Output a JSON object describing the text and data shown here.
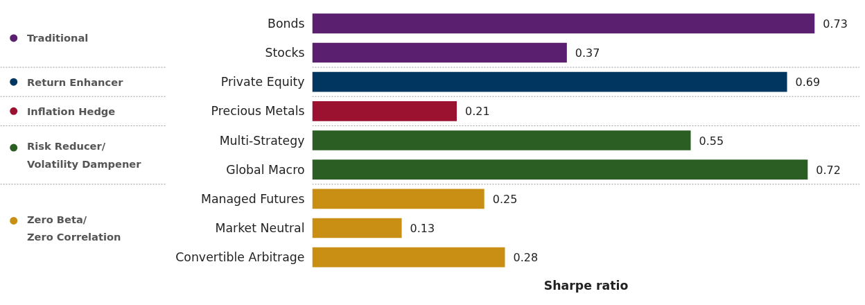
{
  "chart_data": {
    "type": "bar",
    "orientation": "horizontal",
    "xlabel": "Sharpe ratio",
    "data_labels": true,
    "legend": "left",
    "categories": [
      "Bonds",
      "Stocks",
      "Private Equity",
      "Precious Metals",
      "Multi-Strategy",
      "Global Macro",
      "Managed Futures",
      "Market Neutral",
      "Convertible Arbitrage"
    ],
    "series": [
      {
        "name": "Traditional",
        "color": "#5a1f6e",
        "values": [
          0.73,
          0.37,
          null,
          null,
          null,
          null,
          null,
          null,
          null
        ]
      },
      {
        "name": "Return Enhancer",
        "color": "#003660",
        "values": [
          null,
          null,
          0.69,
          null,
          null,
          null,
          null,
          null,
          null
        ]
      },
      {
        "name": "Inflation Hedge",
        "color": "#9b1230",
        "values": [
          null,
          null,
          null,
          0.21,
          null,
          null,
          null,
          null,
          null
        ]
      },
      {
        "name": "Risk Reducer/Volatility Dampener",
        "color": "#2a5e22",
        "values": [
          null,
          null,
          null,
          null,
          0.55,
          0.72,
          null,
          null,
          null
        ]
      },
      {
        "name": "Zero Beta/Zero Correlation",
        "color": "#c88f14",
        "values": [
          null,
          null,
          null,
          null,
          null,
          null,
          0.25,
          0.13,
          0.28
        ]
      }
    ]
  }
}
